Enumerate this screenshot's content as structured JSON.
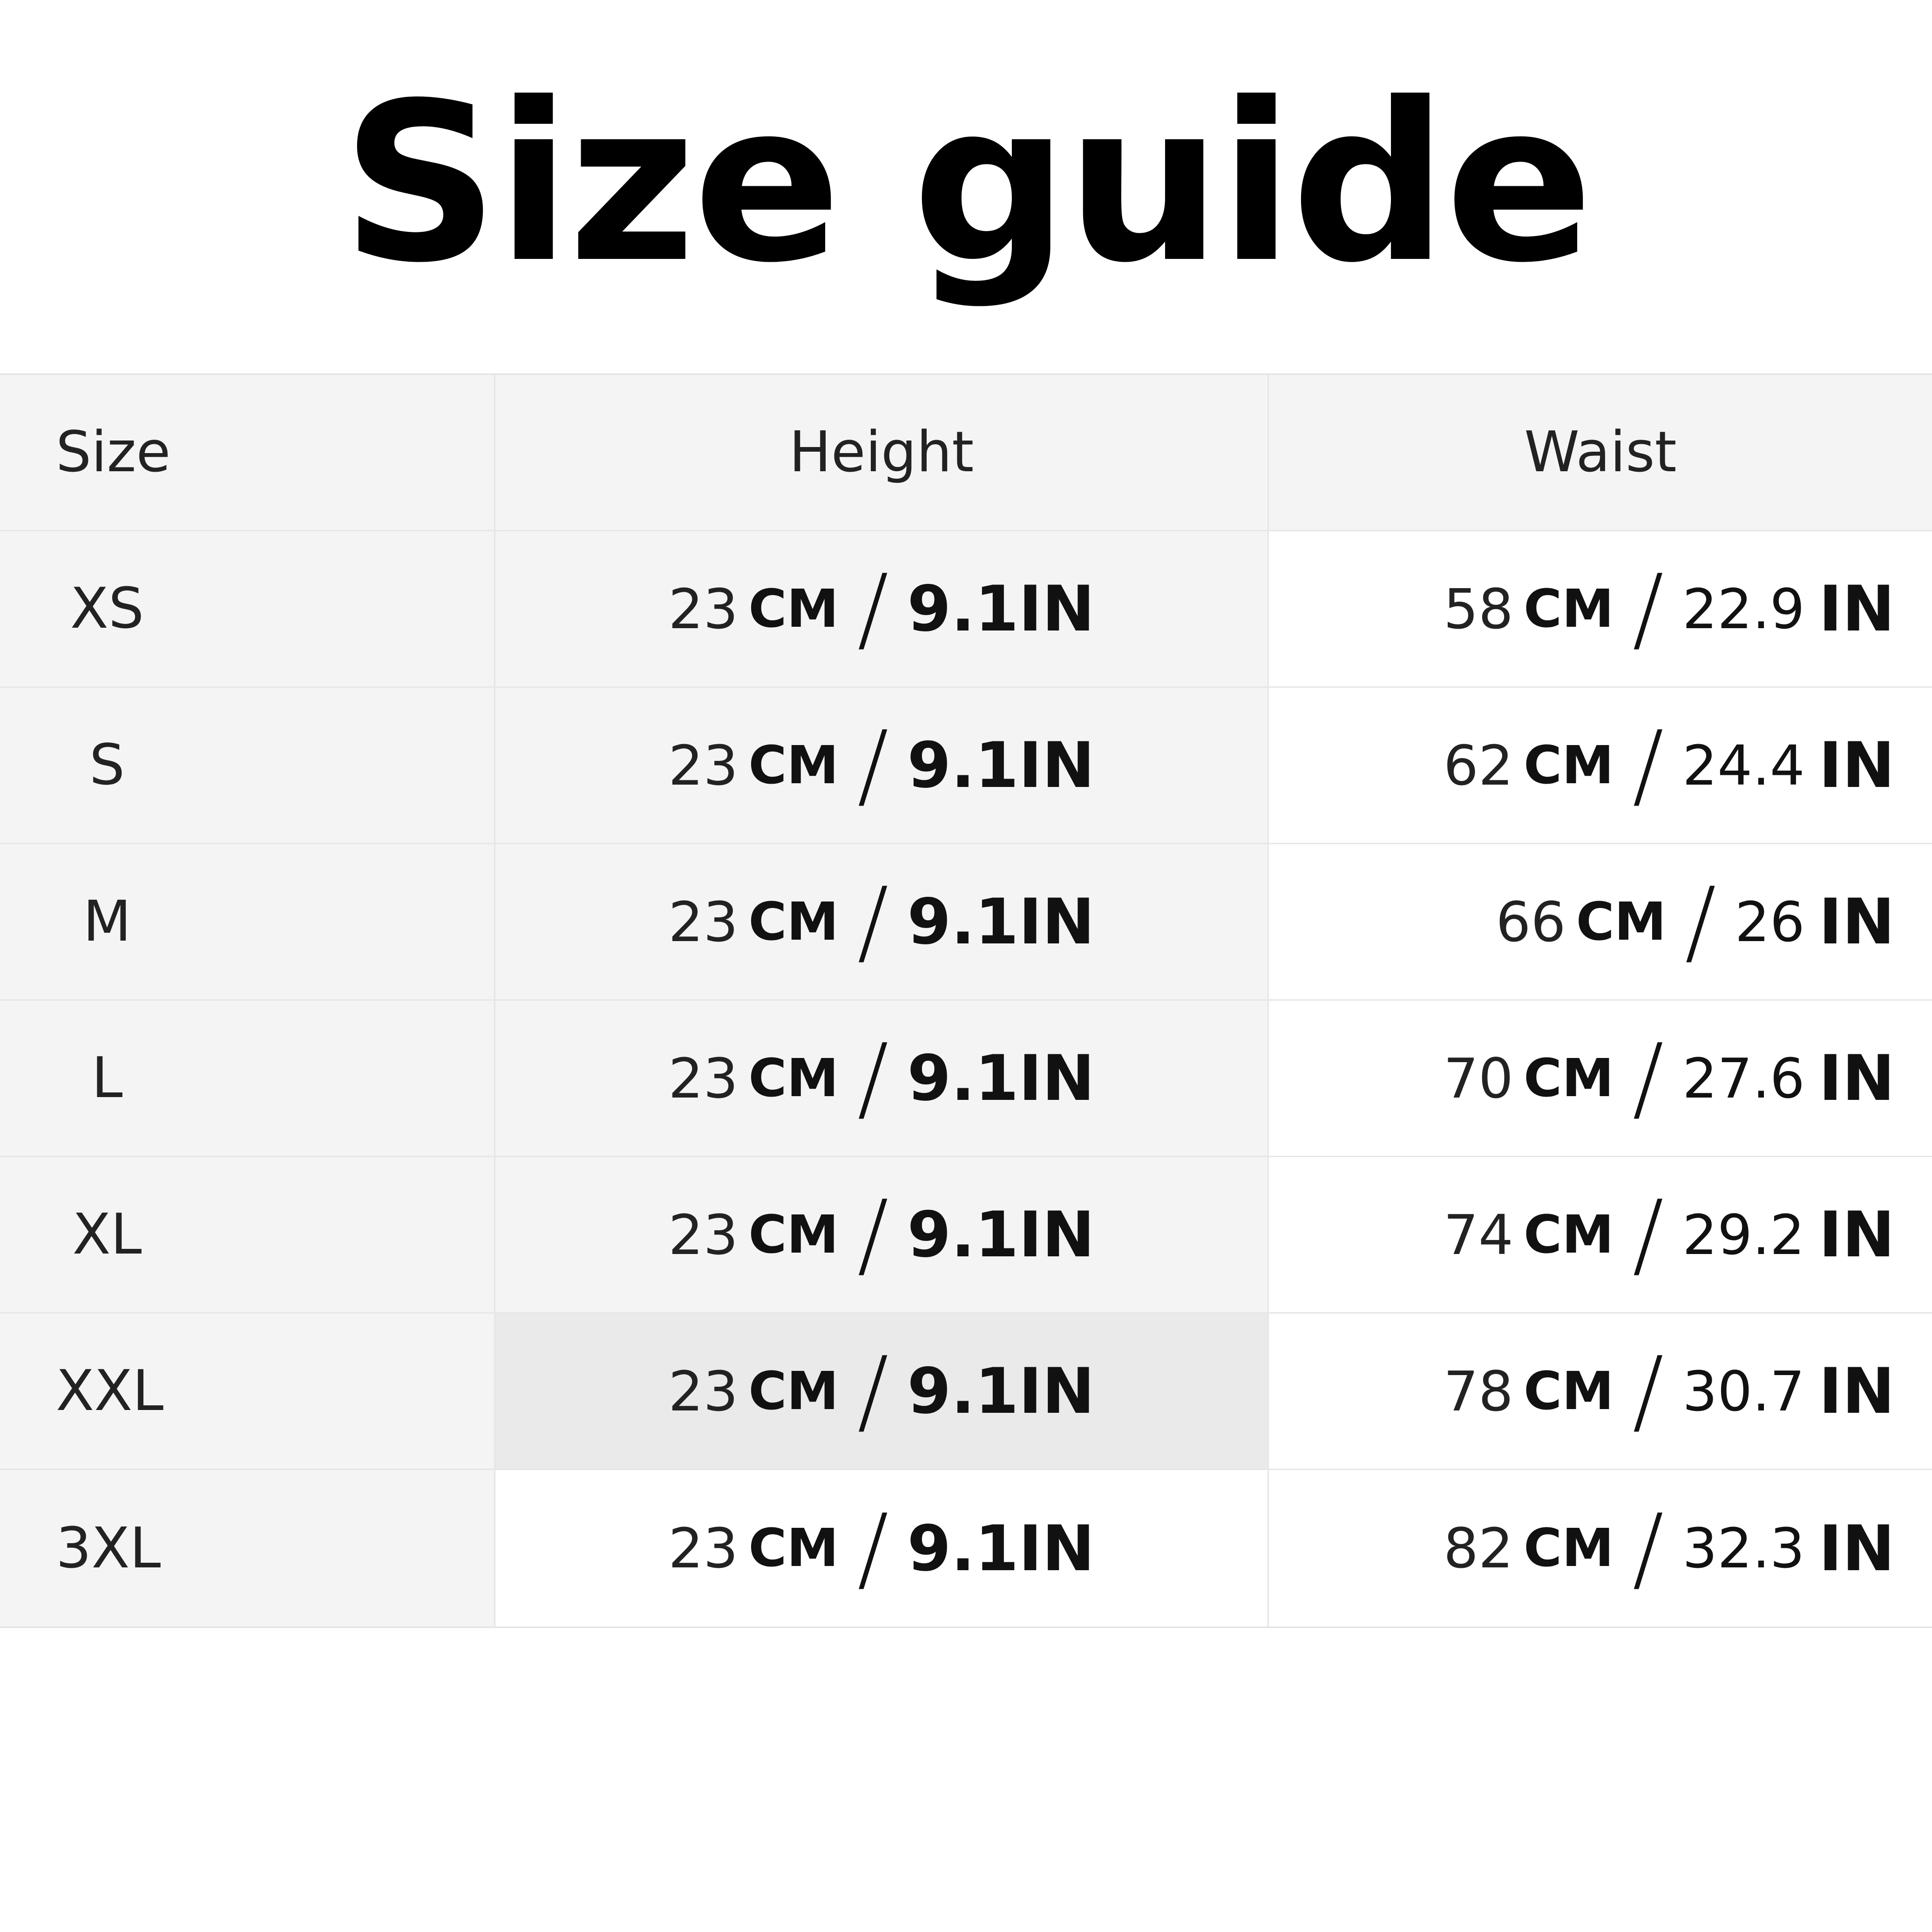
{
  "title": "Size guide",
  "table": {
    "headers": [
      "Size",
      "Height",
      "Waist"
    ],
    "rows": [
      {
        "size": "XS",
        "height_cm": "23",
        "height_in": "9.1",
        "waist_cm": "58",
        "waist_in": "22.9"
      },
      {
        "size": "S",
        "height_cm": "23",
        "height_in": "9.1",
        "waist_cm": "62",
        "waist_in": "24.4"
      },
      {
        "size": "M",
        "height_cm": "23",
        "height_in": "9.1",
        "waist_cm": "66",
        "waist_in": "26"
      },
      {
        "size": "L",
        "height_cm": "23",
        "height_in": "9.1",
        "waist_cm": "70",
        "waist_in": "27.6"
      },
      {
        "size": "XL",
        "height_cm": "23",
        "height_in": "9.1",
        "waist_cm": "74",
        "waist_in": "29.2"
      },
      {
        "size": "XXL",
        "height_cm": "23",
        "height_in": "9.1",
        "waist_cm": "78",
        "waist_in": "30.7"
      },
      {
        "size": "3XL",
        "height_cm": "23",
        "height_in": "9.1",
        "waist_cm": "82",
        "waist_in": "32.3"
      }
    ],
    "unit_cm": "CM",
    "unit_in": "IN",
    "separator": "/"
  }
}
